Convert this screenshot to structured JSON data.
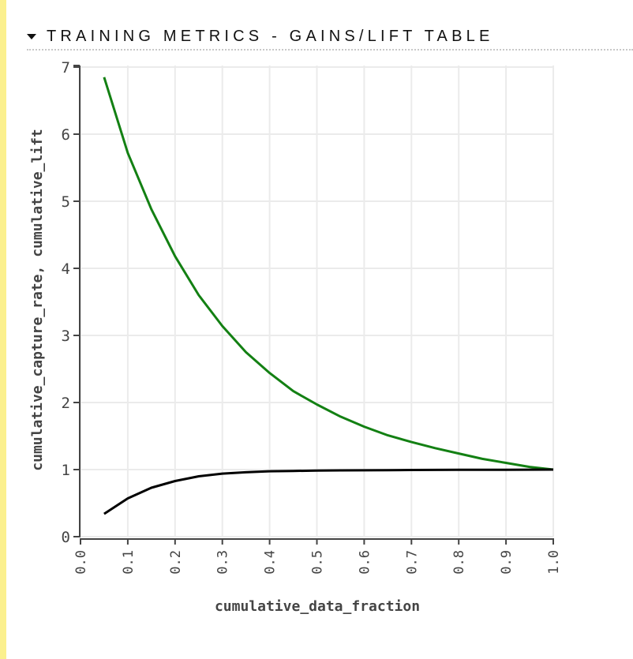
{
  "section": {
    "title": "TRAINING METRICS - GAINS/LIFT TABLE",
    "toggle_icon": "caret-down-icon"
  },
  "chart_data": {
    "type": "line",
    "title": "",
    "xlabel": "cumulative_data_fraction",
    "ylabel": "cumulative_capture_rate, cumulative_lift",
    "xlim": [
      0,
      1.0
    ],
    "ylim": [
      0,
      7
    ],
    "grid": true,
    "x_ticks": [
      "0.0",
      "0.1",
      "0.2",
      "0.3",
      "0.4",
      "0.5",
      "0.6",
      "0.7",
      "0.8",
      "0.9",
      "1.0"
    ],
    "y_ticks": [
      "0",
      "1",
      "2",
      "3",
      "4",
      "5",
      "6",
      "7"
    ],
    "x": [
      0.05,
      0.1,
      0.15,
      0.2,
      0.25,
      0.3,
      0.35,
      0.4,
      0.45,
      0.5,
      0.55,
      0.6,
      0.65,
      0.7,
      0.75,
      0.8,
      0.85,
      0.9,
      0.95,
      1.0
    ],
    "series": [
      {
        "color": "#138013",
        "values": [
          6.85,
          5.72,
          4.88,
          4.18,
          3.6,
          3.14,
          2.75,
          2.44,
          2.17,
          1.97,
          1.79,
          1.64,
          1.51,
          1.41,
          1.32,
          1.24,
          1.16,
          1.1,
          1.04,
          1.0
        ]
      },
      {
        "color": "#000000",
        "values": [
          0.34,
          0.57,
          0.73,
          0.83,
          0.9,
          0.94,
          0.96,
          0.975,
          0.98,
          0.985,
          0.988,
          0.99,
          0.992,
          0.994,
          0.995,
          0.996,
          0.997,
          0.998,
          0.999,
          1.0
        ]
      }
    ]
  }
}
